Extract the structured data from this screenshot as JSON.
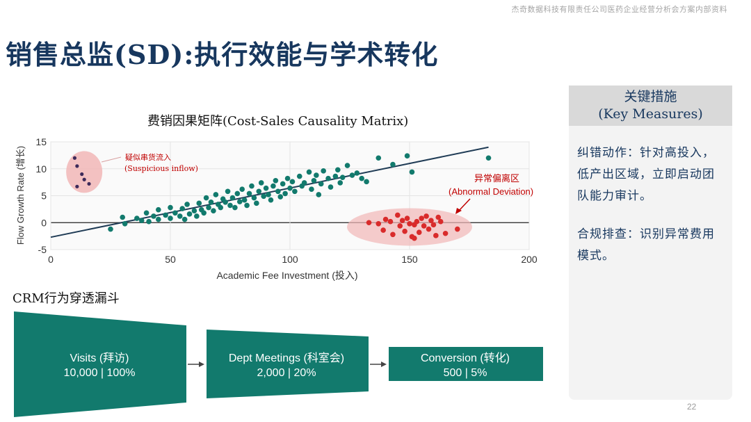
{
  "header_note": "杰奇数据科技有限责任公司医药企业经营分析会方案内部资料",
  "page_title": "销售总监(SD):执行效能与学术转化",
  "page_number": "22",
  "colors": {
    "navy": "#17375e",
    "teal": "#127a6d",
    "red": "#d92b2b",
    "ellipse_fill": "#f1b6b6"
  },
  "chart_data": {
    "type": "scatter",
    "title": "费销因果矩阵(Cost-Sales Causality Matrix)",
    "xlabel": "Academic Fee Investment (投入)",
    "ylabel": "Flow Growth Rate (增长)",
    "xlim": [
      0,
      200
    ],
    "ylim": [
      -5,
      15
    ],
    "xticks": [
      0,
      50,
      100,
      150,
      200
    ],
    "yticks": [
      -5,
      0,
      5,
      10,
      15
    ],
    "grid": true,
    "trendline": {
      "x": [
        0,
        183
      ],
      "y": [
        -2.7,
        14
      ]
    },
    "annotations": [
      {
        "text_cn": "疑似串货流入",
        "text_en": "(Suspicious inflow)"
      },
      {
        "text_cn": "异常偏离区",
        "text_en": "(Abnormal Deviation)"
      }
    ],
    "series": [
      {
        "color": "#127a6d",
        "points": [
          [
            25,
            -1.2
          ],
          [
            30,
            1
          ],
          [
            31,
            -0.2
          ],
          [
            36,
            0.8
          ],
          [
            38,
            0.4
          ],
          [
            40,
            1.8
          ],
          [
            41,
            0.2
          ],
          [
            43,
            1.2
          ],
          [
            45,
            0.6
          ],
          [
            45,
            2.4
          ],
          [
            48,
            1.4
          ],
          [
            50,
            0.8
          ],
          [
            50,
            2.8
          ],
          [
            52,
            1.8
          ],
          [
            54,
            1.2
          ],
          [
            55,
            2.6
          ],
          [
            56,
            0.6
          ],
          [
            57,
            3.4
          ],
          [
            58,
            1.6
          ],
          [
            60,
            2.2
          ],
          [
            61,
            1.2
          ],
          [
            62,
            3.6
          ],
          [
            63,
            2.4
          ],
          [
            64,
            1.8
          ],
          [
            65,
            4.6
          ],
          [
            66,
            2.8
          ],
          [
            67,
            3.8
          ],
          [
            68,
            2.2
          ],
          [
            69,
            5.2
          ],
          [
            70,
            3.4
          ],
          [
            71,
            2.8
          ],
          [
            72,
            4.4
          ],
          [
            73,
            3.8
          ],
          [
            74,
            5.8
          ],
          [
            75,
            3.2
          ],
          [
            76,
            4.6
          ],
          [
            77,
            2.8
          ],
          [
            78,
            5.4
          ],
          [
            79,
            3.9
          ],
          [
            80,
            6.2
          ],
          [
            81,
            4.2
          ],
          [
            82,
            3.2
          ],
          [
            83,
            5.4
          ],
          [
            84,
            6.8
          ],
          [
            85,
            4.6
          ],
          [
            86,
            3.6
          ],
          [
            87,
            5.8
          ],
          [
            88,
            7.4
          ],
          [
            89,
            4.9
          ],
          [
            90,
            6.4
          ],
          [
            91,
            5.2
          ],
          [
            92,
            4.2
          ],
          [
            93,
            6.8
          ],
          [
            94,
            7.8
          ],
          [
            95,
            5.8
          ],
          [
            96,
            4.8
          ],
          [
            97,
            7.2
          ],
          [
            98,
            5.4
          ],
          [
            99,
            8.2
          ],
          [
            100,
            6.4
          ],
          [
            101,
            7.6
          ],
          [
            102,
            5.8
          ],
          [
            104,
            8.6
          ],
          [
            105,
            6.8
          ],
          [
            106,
            7.4
          ],
          [
            108,
            9.4
          ],
          [
            109,
            6.2
          ],
          [
            110,
            7.8
          ],
          [
            111,
            8.8
          ],
          [
            112,
            5.2
          ],
          [
            113,
            7.2
          ],
          [
            114,
            9.6
          ],
          [
            116,
            8.2
          ],
          [
            117,
            6.6
          ],
          [
            119,
            8.6
          ],
          [
            120,
            9.8
          ],
          [
            121,
            7.4
          ],
          [
            122,
            8.4
          ],
          [
            124,
            10.6
          ],
          [
            126,
            8.8
          ],
          [
            128,
            9.2
          ],
          [
            130,
            8.2
          ],
          [
            132,
            7.6
          ],
          [
            137,
            12
          ],
          [
            143,
            10.8
          ],
          [
            149,
            12.4
          ],
          [
            151,
            9.4
          ],
          [
            183,
            12
          ]
        ]
      },
      {
        "color": "#d92b2b",
        "points": [
          [
            133,
            0
          ],
          [
            137,
            -0.2
          ],
          [
            139,
            -1.4
          ],
          [
            140,
            0.6
          ],
          [
            142,
            0.2
          ],
          [
            143,
            -2.2
          ],
          [
            145,
            1.4
          ],
          [
            146,
            -0.6
          ],
          [
            147,
            0.4
          ],
          [
            148,
            -1.6
          ],
          [
            149,
            0.8
          ],
          [
            150,
            -0.2
          ],
          [
            151,
            -2.6
          ],
          [
            152,
            -0.4
          ],
          [
            153,
            0.2
          ],
          [
            154,
            -1.8
          ],
          [
            155,
            0.8
          ],
          [
            156,
            -0.6
          ],
          [
            157,
            1.2
          ],
          [
            158,
            -1.2
          ],
          [
            159,
            0.4
          ],
          [
            160,
            -0.4
          ],
          [
            161,
            -2.4
          ],
          [
            162,
            1
          ],
          [
            163,
            0.2
          ],
          [
            165,
            -2
          ],
          [
            170,
            -1.2
          ],
          [
            152,
            -2.9
          ]
        ]
      },
      {
        "color": "#3d2a5a",
        "points": [
          [
            10,
            12
          ],
          [
            11,
            10.5
          ],
          [
            13,
            9
          ],
          [
            14,
            8
          ],
          [
            16,
            7.2
          ],
          [
            11,
            6.7
          ]
        ]
      }
    ]
  },
  "funnel": {
    "title": "CRM行为穿透漏斗",
    "stages": [
      {
        "label": "Visits (拜访)",
        "value": "10,000 | 100%"
      },
      {
        "label": "Dept Meetings (科室会)",
        "value": "2,000 | 20%"
      },
      {
        "label": "Conversion (转化)",
        "value": "500 | 5%"
      }
    ]
  },
  "panel": {
    "title_cn": "关键措施",
    "title_en": "(Key Measures)",
    "items": [
      "纠错动作：针对高投入，低产出区域，立即启动团队能力审计。",
      "合规排查：识别异常费用模式。"
    ]
  }
}
